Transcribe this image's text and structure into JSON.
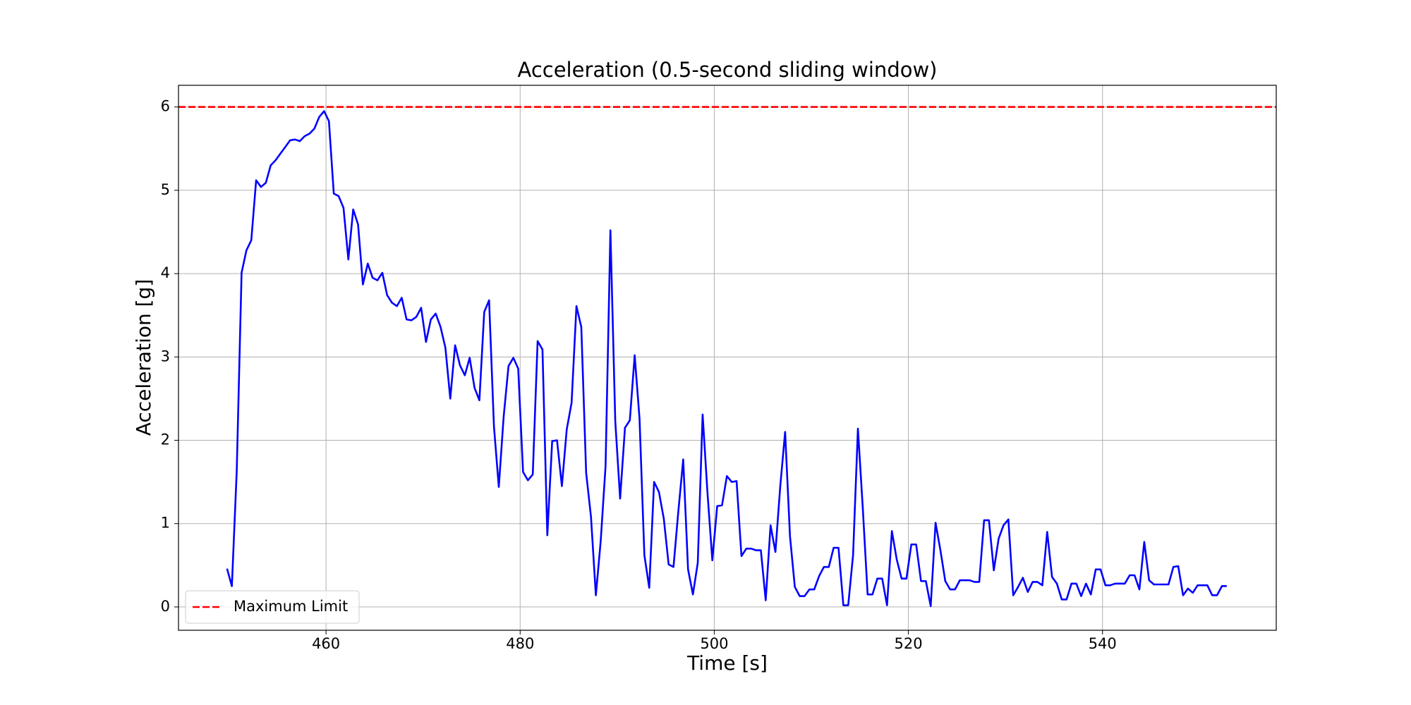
{
  "chart_data": {
    "type": "line",
    "title": "Acceleration (0.5-second sliding window)",
    "x_label": "Time [s]",
    "y_label": "Acceleration [g]",
    "x": [
      449.8,
      450.3,
      450.8,
      451.3,
      451.8,
      452.3,
      452.8,
      453.3,
      453.8,
      454.3,
      454.8,
      455.3,
      455.8,
      456.3,
      456.8,
      457.3,
      457.8,
      458.3,
      458.8,
      459.3,
      459.8,
      460.3,
      460.8,
      461.3,
      461.8,
      462.3,
      462.8,
      463.3,
      463.8,
      464.3,
      464.8,
      465.3,
      465.8,
      466.3,
      466.8,
      467.3,
      467.8,
      468.3,
      468.8,
      469.3,
      469.8,
      470.3,
      470.8,
      471.3,
      471.8,
      472.3,
      472.8,
      473.3,
      473.8,
      474.3,
      474.8,
      475.3,
      475.8,
      476.3,
      476.8,
      477.3,
      477.8,
      478.3,
      478.8,
      479.3,
      479.8,
      480.3,
      480.8,
      481.3,
      481.8,
      482.3,
      482.8,
      483.3,
      483.8,
      484.3,
      484.8,
      485.3,
      485.8,
      486.3,
      486.8,
      487.3,
      487.8,
      488.3,
      488.8,
      489.3,
      489.8,
      490.3,
      490.8,
      491.3,
      491.8,
      492.3,
      492.8,
      493.3,
      493.8,
      494.3,
      494.8,
      495.3,
      495.8,
      496.3,
      496.8,
      497.3,
      497.8,
      498.3,
      498.8,
      499.3,
      499.8,
      500.3,
      500.8,
      501.3,
      501.8,
      502.3,
      502.8,
      503.3,
      503.8,
      504.3,
      504.8,
      505.3,
      505.8,
      506.3,
      506.8,
      507.3,
      507.8,
      508.3,
      508.8,
      509.3,
      509.8,
      510.3,
      510.8,
      511.3,
      511.8,
      512.3,
      512.8,
      513.3,
      513.8,
      514.3,
      514.8,
      515.3,
      515.8,
      516.3,
      516.8,
      517.3,
      517.8,
      518.3,
      518.8,
      519.3,
      519.8,
      520.3,
      520.8,
      521.3,
      521.8,
      522.3,
      522.8,
      523.3,
      523.8,
      524.3,
      524.8,
      525.3,
      525.8,
      526.3,
      526.8,
      527.3,
      527.8,
      528.3,
      528.8,
      529.3,
      529.8,
      530.3,
      530.8,
      531.3,
      531.8,
      532.3,
      532.8,
      533.3,
      533.8,
      534.3,
      534.8,
      535.3,
      535.8,
      536.3,
      536.8,
      537.3,
      537.8,
      538.3,
      538.8,
      539.3,
      539.8,
      540.3,
      540.8,
      541.3,
      541.8,
      542.3,
      542.8,
      543.3,
      543.8,
      544.3,
      544.8,
      545.3,
      545.8,
      546.3,
      546.8,
      547.3,
      547.8,
      548.3,
      548.8,
      549.3,
      549.8,
      550.3,
      550.8,
      551.3,
      551.8,
      552.3,
      552.8
    ],
    "series": [
      {
        "color": "#0000ff",
        "values": [
          0.46,
          0.25,
          1.63,
          4.01,
          4.28,
          4.4,
          5.12,
          5.04,
          5.09,
          5.3,
          5.36,
          5.44,
          5.52,
          5.6,
          5.61,
          5.59,
          5.65,
          5.68,
          5.74,
          5.88,
          5.95,
          5.83,
          4.96,
          4.93,
          4.79,
          4.17,
          4.77,
          4.59,
          3.87,
          4.12,
          3.95,
          3.92,
          4.01,
          3.74,
          3.65,
          3.61,
          3.71,
          3.45,
          3.44,
          3.48,
          3.59,
          3.18,
          3.45,
          3.52,
          3.36,
          3.11,
          2.5,
          3.14,
          2.9,
          2.78,
          2.99,
          2.63,
          2.48,
          3.54,
          3.68,
          2.17,
          1.44,
          2.28,
          2.89,
          2.99,
          2.86,
          1.62,
          1.52,
          1.59,
          3.19,
          3.09,
          0.86,
          1.99,
          2.0,
          1.45,
          2.13,
          2.45,
          3.61,
          3.36,
          1.61,
          1.08,
          0.14,
          0.79,
          1.69,
          4.52,
          2.23,
          1.3,
          2.15,
          2.24,
          3.02,
          2.26,
          0.62,
          0.23,
          1.5,
          1.38,
          1.06,
          0.51,
          0.48,
          1.15,
          1.77,
          0.45,
          0.15,
          0.53,
          2.31,
          1.37,
          0.56,
          1.21,
          1.22,
          1.57,
          1.5,
          1.51,
          0.61,
          0.7,
          0.7,
          0.68,
          0.68,
          0.08,
          0.98,
          0.66,
          1.45,
          2.1,
          0.85,
          0.24,
          0.13,
          0.13,
          0.21,
          0.21,
          0.37,
          0.48,
          0.48,
          0.71,
          0.71,
          0.02,
          0.02,
          0.62,
          2.14,
          1.19,
          0.15,
          0.15,
          0.34,
          0.34,
          0.02,
          0.91,
          0.57,
          0.34,
          0.34,
          0.75,
          0.75,
          0.31,
          0.31,
          0.01,
          1.01,
          0.68,
          0.31,
          0.21,
          0.21,
          0.32,
          0.32,
          0.32,
          0.3,
          0.3,
          1.04,
          1.04,
          0.44,
          0.82,
          0.98,
          1.05,
          0.14,
          0.24,
          0.35,
          0.18,
          0.3,
          0.3,
          0.26,
          0.9,
          0.36,
          0.28,
          0.09,
          0.09,
          0.28,
          0.28,
          0.13,
          0.28,
          0.15,
          0.45,
          0.45,
          0.26,
          0.26,
          0.28,
          0.28,
          0.28,
          0.38,
          0.38,
          0.21,
          0.78,
          0.32,
          0.27,
          0.27,
          0.27,
          0.27,
          0.48,
          0.49,
          0.14,
          0.22,
          0.17,
          0.26,
          0.26,
          0.26,
          0.14,
          0.14,
          0.25,
          0.25
        ]
      }
    ],
    "reference_lines": [
      {
        "value": 6,
        "label": "Maximum Limit",
        "color": "#ff0000",
        "style": "dashed"
      }
    ],
    "xlim": [
      444.8,
      557.9
    ],
    "ylim": [
      -0.28,
      6.26
    ],
    "xticks": [
      460,
      480,
      500,
      520,
      540
    ],
    "yticks": [
      0,
      1,
      2,
      3,
      4,
      5,
      6
    ],
    "grid": true,
    "legend_position": "lower left"
  }
}
